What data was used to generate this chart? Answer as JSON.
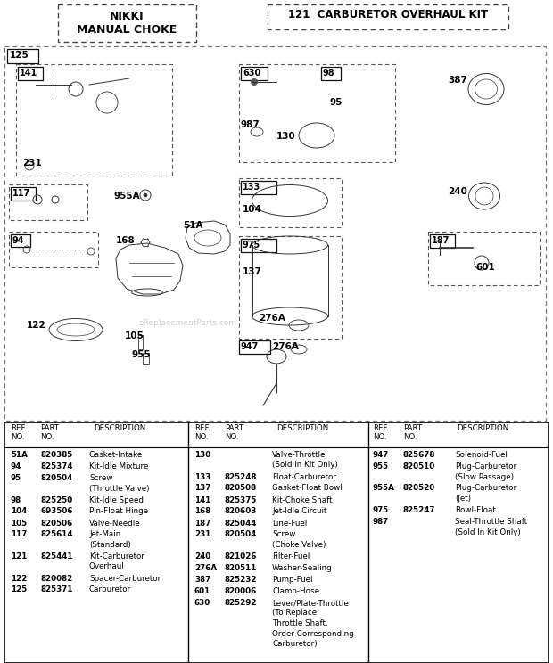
{
  "title_left": "NIKKI\nMANUAL CHOKE",
  "title_right": "121  CARBURETOR OVERHAUL KIT",
  "table_col1": [
    [
      "51A",
      "820385",
      "Gasket-Intake"
    ],
    [
      "94",
      "825374",
      "Kit-Idle Mixture"
    ],
    [
      "95",
      "820504",
      "Screw\n(Throttle Valve)"
    ],
    [
      "98",
      "825250",
      "Kit-Idle Speed"
    ],
    [
      "104",
      "693506",
      "Pin-Float Hinge"
    ],
    [
      "105",
      "820506",
      "Valve-Needle"
    ],
    [
      "117",
      "825614",
      "Jet-Main\n(Standard)"
    ],
    [
      "121",
      "825441",
      "Kit-Carburetor\nOverhaul"
    ],
    [
      "122",
      "820082",
      "Spacer-Carburetor"
    ],
    [
      "125",
      "825371",
      "Carburetor"
    ]
  ],
  "table_col2": [
    [
      "130",
      "",
      "Valve-Throttle\n(Sold In Kit Only)"
    ],
    [
      "133",
      "825248",
      "Float-Carburetor"
    ],
    [
      "137",
      "820508",
      "Gasket-Float Bowl"
    ],
    [
      "141",
      "825375",
      "Kit-Choke Shaft"
    ],
    [
      "168",
      "820603",
      "Jet-Idle Circuit"
    ],
    [
      "187",
      "825044",
      "Line-Fuel"
    ],
    [
      "231",
      "820504",
      "Screw\n(Choke Valve)"
    ],
    [
      "240",
      "821026",
      "Filter-Fuel"
    ],
    [
      "276A",
      "820511",
      "Washer-Sealing"
    ],
    [
      "387",
      "825232",
      "Pump-Fuel"
    ],
    [
      "601",
      "820006",
      "Clamp-Hose"
    ],
    [
      "630",
      "825292",
      "Lever/Plate-Throttle\n(To Replace\nThrottle Shaft,\nOrder Corresponding\nCarburetor)"
    ]
  ],
  "table_col3": [
    [
      "947",
      "825678",
      "Solenoid-Fuel"
    ],
    [
      "955",
      "820510",
      "Plug-Carburetor\n(Slow Passage)"
    ],
    [
      "955A",
      "820520",
      "Plug-Carburetor\n(Jet)"
    ],
    [
      "975",
      "825247",
      "Bowl-Float"
    ],
    [
      "987",
      "",
      "Seal-Throttle Shaft\n(Sold In Kit Only)"
    ]
  ],
  "watermark": "eReplacementParts.com"
}
